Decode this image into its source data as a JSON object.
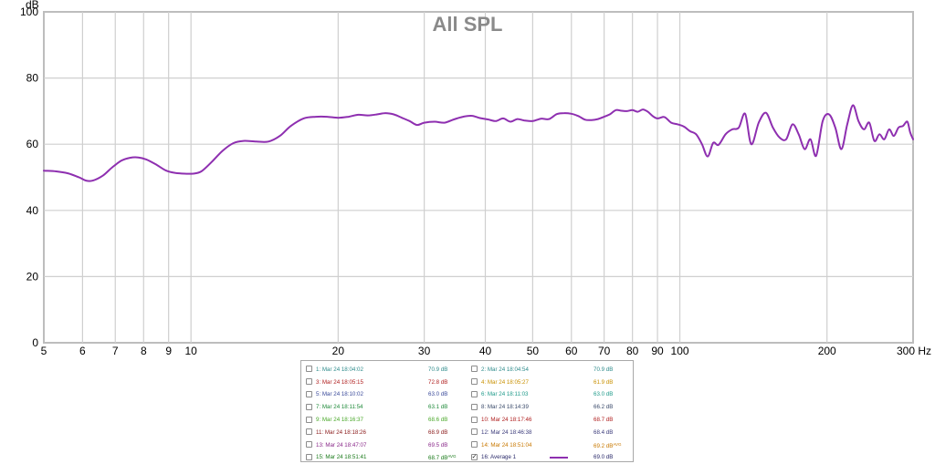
{
  "chart_data": {
    "type": "line",
    "title": "All SPL",
    "ylabel": "dB",
    "xlabel": "Hz",
    "xscale": "log",
    "xlim": [
      5,
      300
    ],
    "ylim": [
      0,
      100
    ],
    "grid": true,
    "x_ticks": [
      {
        "value": 5,
        "label": "5"
      },
      {
        "value": 6,
        "label": "6"
      },
      {
        "value": 7,
        "label": "7"
      },
      {
        "value": 8,
        "label": "8"
      },
      {
        "value": 9,
        "label": "9"
      },
      {
        "value": 10,
        "label": "10"
      },
      {
        "value": 20,
        "label": "20"
      },
      {
        "value": 30,
        "label": "30"
      },
      {
        "value": 40,
        "label": "40"
      },
      {
        "value": 50,
        "label": "50"
      },
      {
        "value": 60,
        "label": "60"
      },
      {
        "value": 70,
        "label": "70"
      },
      {
        "value": 80,
        "label": "80"
      },
      {
        "value": 90,
        "label": "90"
      },
      {
        "value": 100,
        "label": "100"
      },
      {
        "value": 200,
        "label": "200"
      },
      {
        "value": 300,
        "label": "300"
      }
    ],
    "x_unit_label": "Hz",
    "y_ticks": [
      0,
      20,
      40,
      60,
      80,
      100
    ],
    "series": [
      {
        "name": "16: Average 1",
        "color": "#8e2fb0",
        "x": [
          5,
          5.3,
          5.6,
          5.9,
          6.1,
          6.3,
          6.6,
          6.9,
          7.2,
          7.5,
          7.8,
          8.1,
          8.5,
          8.9,
          9.3,
          9.7,
          10.1,
          10.5,
          11.0,
          11.6,
          12.2,
          12.8,
          13.6,
          14.4,
          15.2,
          16.0,
          17.0,
          18.0,
          19.0,
          20.0,
          21.0,
          22.0,
          23.0,
          24.0,
          25.0,
          26.0,
          27.0,
          28.0,
          29.0,
          30.0,
          31.5,
          33.0,
          34.5,
          36.0,
          37.5,
          39.0,
          40.5,
          42.0,
          43.5,
          45.0,
          46.5,
          48.0,
          50.0,
          52.0,
          54.0,
          56.0,
          58.0,
          60.0,
          62.0,
          64.0,
          66.0,
          68.0,
          70.0,
          72.0,
          74.0,
          76.0,
          78.0,
          80.0,
          82.0,
          84.0,
          86.0,
          88.0,
          90.0,
          93.0,
          96.0,
          99.0,
          102.0,
          105.0,
          108.0,
          111.0,
          114.0,
          117.0,
          120.0,
          124.0,
          128.0,
          132.0,
          136.0,
          140.0,
          145.0,
          150.0,
          155.0,
          160.0,
          165.0,
          170.0,
          175.0,
          180.0,
          185.0,
          190.0,
          196.0,
          202.0,
          208.0,
          214.0,
          220.0,
          226.0,
          232.0,
          238.0,
          244.0,
          250.0,
          256.0,
          262.0,
          268.0,
          274.0,
          280.0,
          286.0,
          292.0,
          296.0,
          300.0
        ],
        "y": [
          52.0,
          51.8,
          51.2,
          50.0,
          49.0,
          49.0,
          50.5,
          53.0,
          55.0,
          55.9,
          56.0,
          55.4,
          53.8,
          52.0,
          51.3,
          51.1,
          51.1,
          51.8,
          54.5,
          58.0,
          60.3,
          61.0,
          60.8,
          60.8,
          62.5,
          65.5,
          67.8,
          68.3,
          68.3,
          68.0,
          68.3,
          68.9,
          68.7,
          69.0,
          69.4,
          69.0,
          68.0,
          67.0,
          65.8,
          66.5,
          66.8,
          66.5,
          67.5,
          68.3,
          68.6,
          67.9,
          67.5,
          67.0,
          67.8,
          66.8,
          67.6,
          67.2,
          67.0,
          67.7,
          67.6,
          69.1,
          69.4,
          69.2,
          68.5,
          67.4,
          67.3,
          67.6,
          68.3,
          69.1,
          70.3,
          70.1,
          70.0,
          70.3,
          69.8,
          70.5,
          69.8,
          68.5,
          67.8,
          68.2,
          66.5,
          66.0,
          65.3,
          63.9,
          63.0,
          60.0,
          56.3,
          60.4,
          59.8,
          63.0,
          64.5,
          65.0,
          69.2,
          60.0,
          66.5,
          69.5,
          65.0,
          62.0,
          61.5,
          66.0,
          63.0,
          58.5,
          61.5,
          56.5,
          67.0,
          69.0,
          65.0,
          58.5,
          66.0,
          71.8,
          67.0,
          64.5,
          66.5,
          61.0,
          63.0,
          61.5,
          64.5,
          62.5,
          65.0,
          65.5,
          66.8,
          63.5,
          61.5
        ]
      }
    ]
  },
  "legend": {
    "rows": [
      [
        {
          "checked": false,
          "name": "1: Mar 24 18:04:02",
          "value": "70.9 dB",
          "avg": "",
          "color": "#2e8b8b"
        },
        {
          "checked": false,
          "name": "2: Mar 24 18:04:54",
          "value": "70.9 dB",
          "avg": "",
          "color": "#2e8b8b"
        }
      ],
      [
        {
          "checked": false,
          "name": "3: Mar 24 18:05:15",
          "value": "72.8 dB",
          "avg": "",
          "color": "#b02020"
        },
        {
          "checked": false,
          "name": "4: Mar 24 18:05:27",
          "value": "61.9 dB",
          "avg": "",
          "color": "#c89000"
        }
      ],
      [
        {
          "checked": false,
          "name": "5: Mar 24 18:10:02",
          "value": "63.0 dB",
          "avg": "",
          "color": "#3a4a9a"
        },
        {
          "checked": false,
          "name": "6: Mar 24 18:11:03",
          "value": "63.0 dB",
          "avg": "",
          "color": "#1f9a8a"
        }
      ],
      [
        {
          "checked": false,
          "name": "7: Mar 24 18:11:54",
          "value": "63.1 dB",
          "avg": "",
          "color": "#1f8a3a"
        },
        {
          "checked": false,
          "name": "8: Mar 24 18:14:39",
          "value": "66.2 dB",
          "avg": "",
          "color": "#3a4a6a"
        }
      ],
      [
        {
          "checked": false,
          "name": "9: Mar 24 18:16:37",
          "value": "68.6 dB",
          "avg": "",
          "color": "#4aa82a"
        },
        {
          "checked": false,
          "name": "10: Mar 24 18:17:46",
          "value": "68.7 dB",
          "avg": "",
          "color": "#b02020"
        }
      ],
      [
        {
          "checked": false,
          "name": "11: Mar 24 18:18:26",
          "value": "68.9 dB",
          "avg": "",
          "color": "#8a1a1a"
        },
        {
          "checked": false,
          "name": "12: Mar 24 18:46:38",
          "value": "68.4 dB",
          "avg": "",
          "color": "#3a3a7a"
        }
      ],
      [
        {
          "checked": false,
          "name": "13: Mar 24 18:47:07",
          "value": "69.5 dB",
          "avg": "",
          "color": "#8a2a8a"
        },
        {
          "checked": false,
          "name": "14: Mar 24 18:51:04",
          "value": "69.2 dB",
          "avg": "AVG",
          "color": "#c87800"
        }
      ],
      [
        {
          "checked": false,
          "name": "15: Mar 24 18:51:41",
          "value": "68.7 dB",
          "avg": "AVG",
          "color": "#1a7a1a"
        },
        {
          "checked": true,
          "name": "16: Average 1",
          "value": "69.0 dB",
          "avg": "",
          "color": "#2a2a6a",
          "swatch": "#8e2fb0",
          "check_glyph": "✓"
        }
      ]
    ]
  }
}
